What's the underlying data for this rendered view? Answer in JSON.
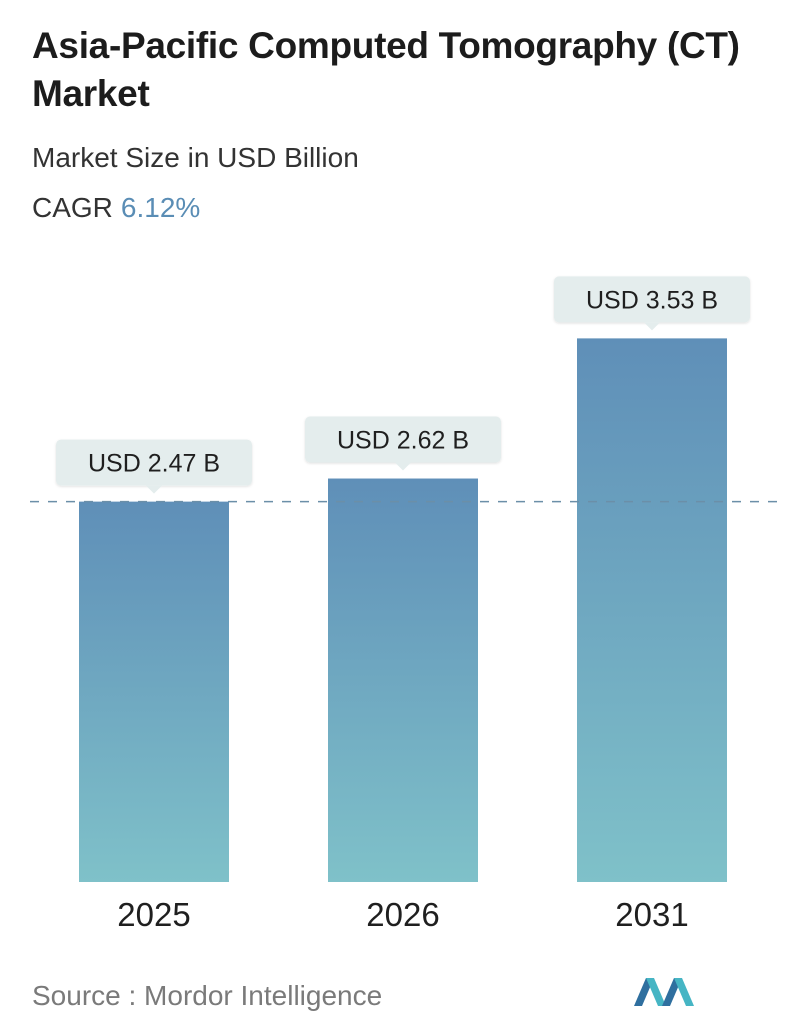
{
  "header": {
    "title": "Asia-Pacific Computed Tomography (CT) Market",
    "subtitle": "Market Size in USD Billion",
    "cagr_label": "CAGR",
    "cagr_value": "6.12%"
  },
  "footer": {
    "source": "Source :  Mordor Intelligence"
  },
  "colors": {
    "bar_top": "#5f8fb8",
    "bar_bottom": "#7fc1c9",
    "label_bg": "#e4eded",
    "dashed_line": "#6b8fa8",
    "accent": "#5a8db5"
  },
  "chart_data": {
    "type": "bar",
    "categories": [
      "2025",
      "2026",
      "2031"
    ],
    "values": [
      2.47,
      2.62,
      3.53
    ],
    "value_labels": [
      "USD 2.47 B",
      "USD 2.62 B",
      "USD 3.53 B"
    ],
    "reference_line": 2.47,
    "grid": false,
    "legend": "none"
  }
}
